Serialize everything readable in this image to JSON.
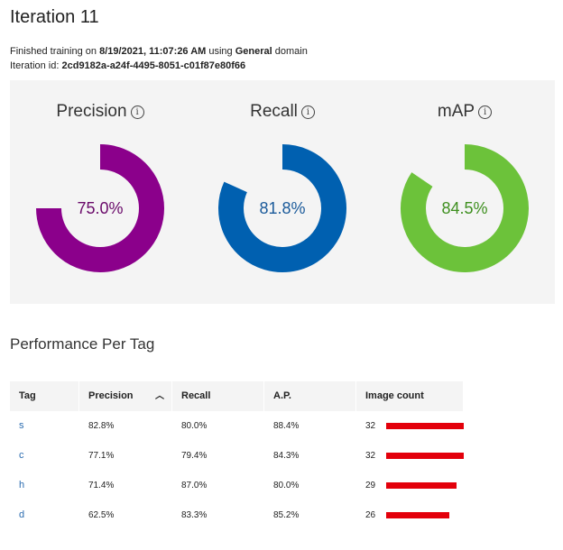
{
  "page": {
    "title": "Iteration 11",
    "finished_prefix": "Finished training on",
    "finished_date": "8/19/2021, 11:07:26 AM",
    "using_text": "using",
    "domain": "General",
    "domain_suffix": "domain",
    "iteration_label": "Iteration id:",
    "iteration_id": "2cd9182a-a24f-4495-8051-c01f87e80f66"
  },
  "metrics": [
    {
      "label": "Precision",
      "value_text": "75.0%",
      "value": 75.0,
      "color": "#8b008b",
      "text_color": "#6a0a6a"
    },
    {
      "label": "Recall",
      "value_text": "81.8%",
      "value": 81.8,
      "color": "#0060b0",
      "text_color": "#1a5a9a"
    },
    {
      "label": "mAP",
      "value_text": "84.5%",
      "value": 84.5,
      "color": "#6cc23a",
      "text_color": "#3e8f1f"
    }
  ],
  "info_icon": "info-icon",
  "table": {
    "title": "Performance Per Tag",
    "columns": [
      "Tag",
      "Precision",
      "Recall",
      "A.P.",
      "Image count"
    ],
    "sort_icon": "chevron-up-icon",
    "bar_color": "#e3000b",
    "max_count": 32,
    "rows": [
      {
        "tag": "s",
        "precision": "82.8%",
        "recall": "80.0%",
        "ap": "88.4%",
        "count": 32
      },
      {
        "tag": "c",
        "precision": "77.1%",
        "recall": "79.4%",
        "ap": "84.3%",
        "count": 32
      },
      {
        "tag": "h",
        "precision": "71.4%",
        "recall": "87.0%",
        "ap": "80.0%",
        "count": 29
      },
      {
        "tag": "d",
        "precision": "62.5%",
        "recall": "83.3%",
        "ap": "85.2%",
        "count": 26
      }
    ]
  }
}
